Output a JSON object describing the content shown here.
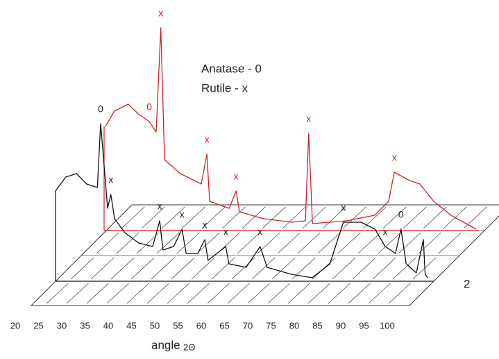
{
  "chart_data": {
    "type": "line",
    "legend_lines": [
      "Anatase - 0",
      "Rutile - x"
    ],
    "x_label": "angle",
    "x_label_symbol": "2Θ",
    "depth_label": "2",
    "xlim": [
      20,
      100
    ],
    "xticks": [
      20,
      25,
      30,
      35,
      40,
      45,
      50,
      55,
      60,
      65,
      70,
      75,
      80,
      85,
      90,
      95,
      100
    ],
    "series": [
      {
        "color": "#cc2222",
        "x": [
          20.3,
          22.2,
          25.2,
          27.5,
          29.7,
          31.2,
          32.2,
          33.0,
          36.4,
          40.9,
          42.1,
          42.7,
          46.9,
          48.4,
          49.1,
          54.3,
          60.3,
          63.3,
          64.0,
          64.8,
          72.2,
          78.2,
          81.2,
          82.4,
          85.7,
          87.9,
          90.9,
          94.6,
          100
        ],
        "values": [
          150,
          172,
          182,
          167,
          157,
          142,
          292,
          102,
          82,
          67,
          110,
          42,
          32,
          57,
          27,
          17,
          12,
          14,
          140,
          10,
          14,
          22,
          42,
          84,
          72,
          67,
          42,
          22,
          2
        ],
        "annotations": [
          {
            "text": "0",
            "x": 29.7
          },
          {
            "text": "x",
            "x": 32.2
          },
          {
            "text": "x",
            "x": 42.1
          },
          {
            "text": "x",
            "x": 48.4
          },
          {
            "text": "x",
            "x": 64.0
          },
          {
            "text": "x",
            "x": 82.4
          }
        ]
      },
      {
        "color": "#111111",
        "x": [
          20,
          22.2,
          24.5,
          26.7,
          29.0,
          29.7,
          30.4,
          31.2,
          31.9,
          32.7,
          34.9,
          37.9,
          40.9,
          42.4,
          43.1,
          45.4,
          47.2,
          48.1,
          50.6,
          52.1,
          52.8,
          56.6,
          57.3,
          61.0,
          64.0,
          65.5,
          70.7,
          75.2,
          79.0,
          81.9,
          85.7,
          88.7,
          90.9,
          93.1,
          94.3,
          95.4,
          97.6,
          99.1,
          99.5,
          100
        ],
        "values": [
          130,
          150,
          155,
          140,
          135,
          227,
          170,
          105,
          125,
          90,
          70,
          55,
          50,
          87,
          45,
          50,
          75,
          40,
          40,
          60,
          30,
          50,
          25,
          20,
          50,
          20,
          10,
          5,
          25,
          85,
          85,
          75,
          50,
          40,
          75,
          25,
          12,
          60,
          10,
          5
        ],
        "annotations": [
          {
            "text": "0",
            "x": 29.7
          },
          {
            "text": "x",
            "x": 31.9
          },
          {
            "text": "x",
            "x": 42.4
          },
          {
            "text": "x",
            "x": 47.2
          },
          {
            "text": "x",
            "x": 52.1
          },
          {
            "text": "x",
            "x": 56.6
          },
          {
            "text": "x",
            "x": 64.0
          },
          {
            "text": "x",
            "x": 81.9
          },
          {
            "text": "x",
            "x": 90.9
          },
          {
            "text": "0",
            "x": 94.3
          }
        ]
      }
    ]
  }
}
